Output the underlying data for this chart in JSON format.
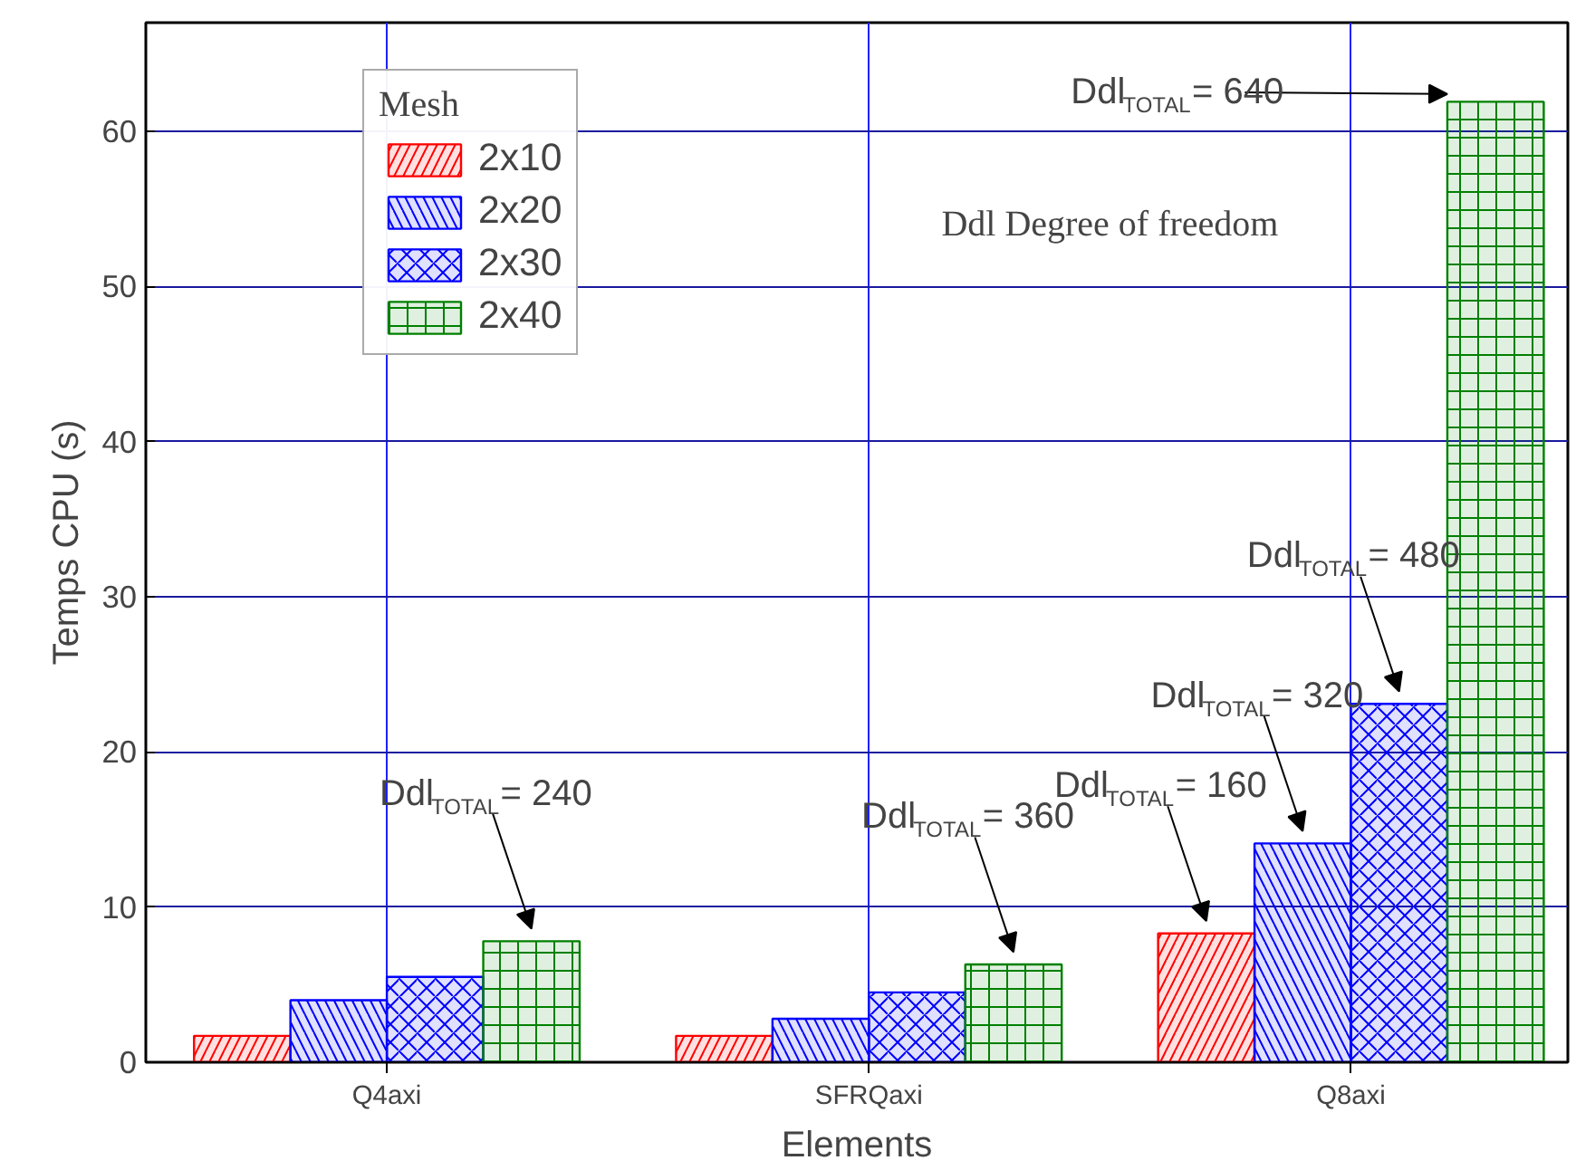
{
  "chart_data": {
    "type": "bar",
    "xlabel": "Elements",
    "ylabel": "Temps CPU (s)",
    "legend_title": "Mesh",
    "categories": [
      "Q4axi",
      "SFRQaxi",
      "Q8axi"
    ],
    "series": [
      {
        "name": "2x10",
        "color": "#ff0000",
        "values": [
          1.7,
          1.7,
          8.3
        ]
      },
      {
        "name": "2x20",
        "color": "#0000ff",
        "values": [
          4.0,
          2.8,
          14.1
        ]
      },
      {
        "name": "2x30",
        "color": "#0000ff",
        "values": [
          5.5,
          4.5,
          23.1
        ]
      },
      {
        "name": "2x40",
        "color": "#008000",
        "values": [
          7.8,
          6.3,
          61.9
        ]
      }
    ],
    "ylim": [
      0,
      67
    ],
    "yticks": [
      0,
      10,
      20,
      30,
      40,
      50,
      60
    ],
    "grid": true,
    "legend": "top left",
    "annotations": [
      "Ddl Degree of freedom",
      "Ddl$_{TOTAL}$= 240",
      "Ddl$_{TOTAL}$= 360",
      "Ddl$_{TOTAL}$= 160",
      "Ddl$_{TOTAL}$= 320",
      "Ddl$_{TOTAL}$= 480",
      "Ddl$_{TOTAL}$= 640"
    ]
  }
}
